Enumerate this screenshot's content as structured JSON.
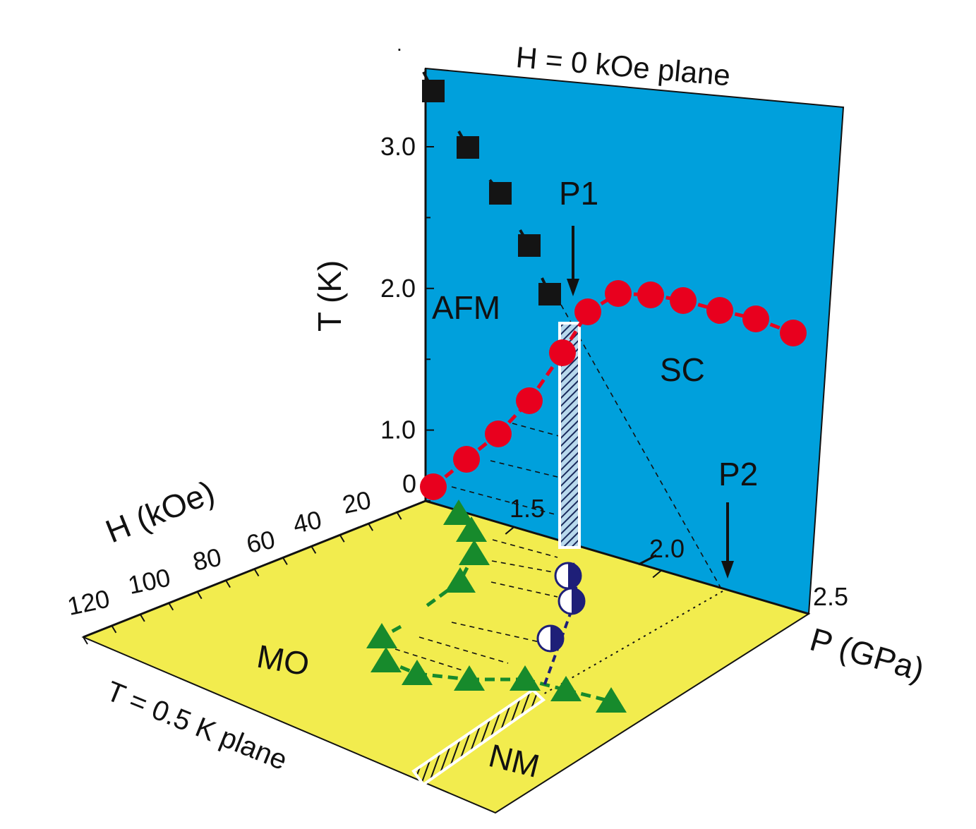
{
  "chart_data": {
    "type": "scatter",
    "colors": {
      "blue_plane": "#00a0dc",
      "yellow_plane": "#f2ec4e",
      "afm": "#141414",
      "sc": "#e8001e",
      "mo": "#178a2c",
      "half_circle": "#1e1f78"
    },
    "labels": {
      "blue_plane_title": "H = 0 kOe plane",
      "yellow_plane_title": "T = 0.5 K plane",
      "t_axis": "T (K)",
      "h_axis": "H (kOe)",
      "p_axis": "P (GPa)",
      "afm": "AFM",
      "sc": "SC",
      "mo": "MO",
      "nm": "NM",
      "p1": "P1",
      "p2": "P2"
    },
    "t_ticks": [
      "0",
      "1.0",
      "2.0",
      "3.0"
    ],
    "h_ticks": [
      "20",
      "40",
      "60",
      "80",
      "100",
      "120"
    ],
    "p_ticks": [
      "1.5",
      "2.0",
      "2.5"
    ],
    "p_range": [
      1.2,
      2.5
    ],
    "t_range": [
      0.5,
      3.5
    ],
    "h_range": [
      0,
      120
    ],
    "series": [
      {
        "name": "AFM",
        "marker": "square",
        "plane": "H = 0 kOe",
        "points": [
          [
            1.22,
            3.35
          ],
          [
            1.33,
            3.0
          ],
          [
            1.42,
            2.68
          ],
          [
            1.51,
            2.35
          ],
          [
            1.58,
            2.0
          ]
        ]
      },
      {
        "name": "SC",
        "marker": "circle",
        "plane": "H = 0 kOe",
        "points": [
          [
            1.21,
            0.62
          ],
          [
            1.31,
            0.84
          ],
          [
            1.41,
            1.0
          ],
          [
            1.5,
            1.27
          ],
          [
            1.59,
            1.58
          ],
          [
            1.68,
            1.88
          ],
          [
            1.79,
            2.0
          ],
          [
            1.9,
            2.0
          ],
          [
            2.01,
            1.96
          ],
          [
            2.12,
            1.89
          ],
          [
            2.23,
            1.83
          ],
          [
            2.35,
            1.73
          ]
        ]
      },
      {
        "name": "MO",
        "marker": "triangle",
        "plane": "T = 0.5 K",
        "points": [
          [
            1.3,
            4
          ],
          [
            1.35,
            14
          ],
          [
            1.35,
            22
          ],
          [
            1.35,
            32
          ],
          [
            1.38,
            56
          ],
          [
            1.38,
            70
          ],
          [
            1.4,
            80
          ],
          [
            1.5,
            84
          ],
          [
            1.66,
            86
          ],
          [
            1.83,
            88
          ],
          [
            1.98,
            88
          ],
          [
            2.13,
            90
          ]
        ]
      },
      {
        "name": "half-filled circles",
        "marker": "half-circle",
        "plane": "T = 0.5 K",
        "points": [
          [
            1.76,
            28
          ],
          [
            1.78,
            34
          ],
          [
            1.8,
            56
          ]
        ]
      }
    ],
    "bars": [
      {
        "name": "P1 bar",
        "plane": "H = 0 kOe",
        "p": 1.65,
        "t_range": [
          0.5,
          1.8
        ]
      },
      {
        "name": "NM bar",
        "plane": "T = 0.5 K",
        "p": 1.85,
        "h_range": [
          90,
          140
        ]
      }
    ],
    "markers": [
      {
        "label": "P1",
        "p": 1.65,
        "t": 2.0
      },
      {
        "label": "P2",
        "p": 2.35,
        "t": 0.5
      }
    ]
  }
}
